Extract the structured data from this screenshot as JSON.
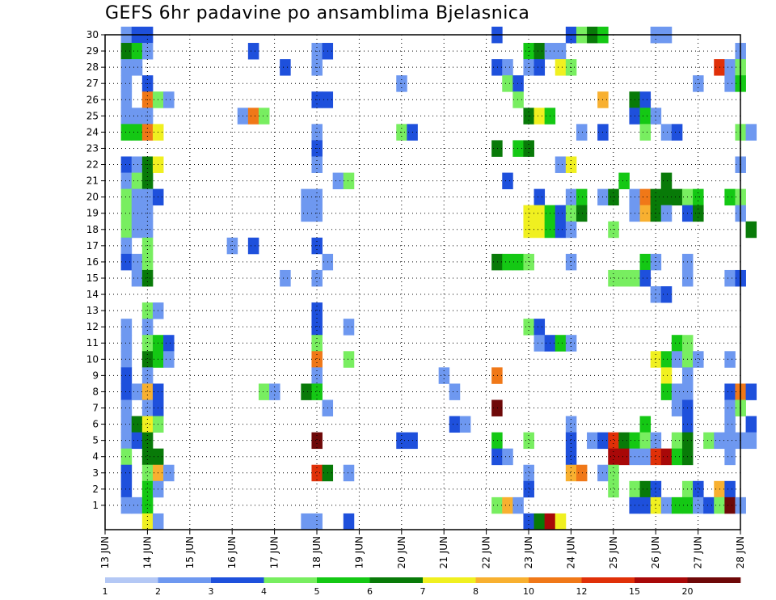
{
  "chart_data": {
    "type": "heatmap",
    "title": "GEFS 6hr padavine po ansamblima Bjelasnica",
    "xlabel": "",
    "ylabel": "",
    "x_ticks": [
      "13 JUN",
      "14 JUN",
      "15 JUN",
      "16 JUN",
      "17 JUN",
      "18 JUN",
      "19 JUN",
      "20 JUN",
      "21 JUN",
      "22 JUN",
      "23 JUN",
      "24 JUN",
      "25 JUN",
      "26 JUN",
      "27 JUN",
      "28 JUN"
    ],
    "y_ticks": [
      1,
      2,
      3,
      4,
      5,
      6,
      7,
      8,
      9,
      10,
      11,
      12,
      13,
      14,
      15,
      16,
      17,
      18,
      19,
      20,
      21,
      22,
      23,
      24,
      25,
      26,
      27,
      28,
      29,
      30
    ],
    "xlim_days": [
      13,
      28
    ],
    "ylim_members": [
      0,
      30
    ],
    "time_step_hours": 6,
    "grid": true,
    "colorbar": {
      "tick_labels": [
        "1",
        "2",
        "3",
        "4",
        "5",
        "6",
        "7",
        "8",
        "10",
        "12",
        "15",
        "20"
      ],
      "colors": [
        "#b4c8f5",
        "#6e98f0",
        "#1e50dc",
        "#78ee60",
        "#14c814",
        "#087a08",
        "#f0f020",
        "#f8b030",
        "#f07818",
        "#e03008",
        "#a80808",
        "#6e0808"
      ]
    },
    "cells": [
      [
        13.5,
        30,
        1
      ],
      [
        13.75,
        30,
        2
      ],
      [
        14,
        30,
        2
      ],
      [
        22.25,
        30,
        2
      ],
      [
        24,
        30,
        2
      ],
      [
        24.25,
        30,
        3
      ],
      [
        24.5,
        30,
        5
      ],
      [
        24.75,
        30,
        4
      ],
      [
        26,
        30,
        1
      ],
      [
        26.25,
        30,
        1
      ],
      [
        13.5,
        29,
        5
      ],
      [
        13.75,
        29,
        4
      ],
      [
        14,
        29,
        1
      ],
      [
        16.5,
        29,
        2
      ],
      [
        18,
        29,
        1
      ],
      [
        18.25,
        29,
        2
      ],
      [
        23,
        29,
        4
      ],
      [
        23.25,
        29,
        5
      ],
      [
        23.5,
        29,
        1
      ],
      [
        23.75,
        29,
        1
      ],
      [
        28,
        29,
        1
      ],
      [
        13.5,
        28,
        1
      ],
      [
        13.75,
        28,
        1
      ],
      [
        17.25,
        28,
        2
      ],
      [
        18,
        28,
        1
      ],
      [
        22.25,
        28,
        2
      ],
      [
        22.5,
        28,
        1
      ],
      [
        23,
        28,
        1
      ],
      [
        23.25,
        28,
        2
      ],
      [
        23.75,
        28,
        6
      ],
      [
        24,
        28,
        3
      ],
      [
        27.5,
        28,
        9
      ],
      [
        27.75,
        28,
        1
      ],
      [
        28,
        28,
        3
      ],
      [
        13.5,
        27,
        1
      ],
      [
        14,
        27,
        2
      ],
      [
        20,
        27,
        1
      ],
      [
        22.5,
        27,
        3
      ],
      [
        22.75,
        27,
        2
      ],
      [
        27,
        27,
        1
      ],
      [
        27.75,
        27,
        1
      ],
      [
        28,
        27,
        4
      ],
      [
        13.5,
        26,
        1
      ],
      [
        14,
        26,
        8
      ],
      [
        14.25,
        26,
        3
      ],
      [
        14.5,
        26,
        1
      ],
      [
        18,
        26,
        2
      ],
      [
        18.25,
        26,
        2
      ],
      [
        22.75,
        26,
        3
      ],
      [
        24.75,
        26,
        7
      ],
      [
        25.5,
        26,
        5
      ],
      [
        25.75,
        26,
        2
      ],
      [
        13.5,
        25,
        1
      ],
      [
        13.75,
        25,
        1
      ],
      [
        14,
        25,
        1
      ],
      [
        16.25,
        25,
        1
      ],
      [
        16.5,
        25,
        8
      ],
      [
        16.75,
        25,
        3
      ],
      [
        23,
        25,
        5
      ],
      [
        23.25,
        25,
        6
      ],
      [
        23.5,
        25,
        4
      ],
      [
        25.5,
        25,
        2
      ],
      [
        25.75,
        25,
        4
      ],
      [
        26,
        25,
        1
      ],
      [
        13.5,
        24,
        4
      ],
      [
        13.75,
        24,
        4
      ],
      [
        14,
        24,
        8
      ],
      [
        14.25,
        24,
        6
      ],
      [
        18,
        24,
        1
      ],
      [
        20,
        24,
        3
      ],
      [
        20.25,
        24,
        2
      ],
      [
        24.25,
        24,
        1
      ],
      [
        24.75,
        24,
        2
      ],
      [
        25.75,
        24,
        3
      ],
      [
        26.25,
        24,
        1
      ],
      [
        26.5,
        24,
        2
      ],
      [
        28,
        24,
        3
      ],
      [
        28.25,
        24,
        1
      ],
      [
        18,
        23,
        2
      ],
      [
        22.25,
        23,
        5
      ],
      [
        22.75,
        23,
        4
      ],
      [
        23,
        23,
        5
      ],
      [
        13.5,
        22,
        2
      ],
      [
        13.75,
        22,
        1
      ],
      [
        14,
        22,
        5
      ],
      [
        14.25,
        22,
        6
      ],
      [
        18,
        22,
        1
      ],
      [
        23.75,
        22,
        1
      ],
      [
        24,
        22,
        6
      ],
      [
        28,
        22,
        1
      ],
      [
        13.5,
        21,
        1
      ],
      [
        13.75,
        21,
        3
      ],
      [
        14,
        21,
        5
      ],
      [
        18.5,
        21,
        1
      ],
      [
        18.75,
        21,
        3
      ],
      [
        22.5,
        21,
        2
      ],
      [
        25.25,
        21,
        4
      ],
      [
        26.25,
        21,
        5
      ],
      [
        13.5,
        20,
        3
      ],
      [
        13.75,
        20,
        1
      ],
      [
        14,
        20,
        1
      ],
      [
        14.25,
        20,
        2
      ],
      [
        17.75,
        20,
        1
      ],
      [
        18,
        20,
        1
      ],
      [
        23.25,
        20,
        2
      ],
      [
        24,
        20,
        1
      ],
      [
        24.25,
        20,
        4
      ],
      [
        24.75,
        20,
        1
      ],
      [
        25,
        20,
        5
      ],
      [
        25.5,
        20,
        1
      ],
      [
        25.75,
        20,
        8
      ],
      [
        26,
        20,
        5
      ],
      [
        26.25,
        20,
        5
      ],
      [
        26.5,
        20,
        5
      ],
      [
        26.75,
        20,
        3
      ],
      [
        27,
        20,
        4
      ],
      [
        27.75,
        20,
        4
      ],
      [
        28,
        20,
        3
      ],
      [
        13.5,
        19,
        3
      ],
      [
        13.75,
        19,
        1
      ],
      [
        14,
        19,
        1
      ],
      [
        17.75,
        19,
        1
      ],
      [
        18,
        19,
        1
      ],
      [
        23,
        19,
        6
      ],
      [
        23.25,
        19,
        6
      ],
      [
        23.5,
        19,
        4
      ],
      [
        23.75,
        19,
        2
      ],
      [
        24,
        19,
        3
      ],
      [
        24.25,
        19,
        5
      ],
      [
        25.5,
        19,
        1
      ],
      [
        25.75,
        19,
        7
      ],
      [
        26,
        19,
        5
      ],
      [
        26.25,
        19,
        1
      ],
      [
        26.75,
        19,
        2
      ],
      [
        27,
        19,
        5
      ],
      [
        28,
        19,
        1
      ],
      [
        13.5,
        18,
        3
      ],
      [
        13.75,
        18,
        1
      ],
      [
        14,
        18,
        1
      ],
      [
        23,
        18,
        6
      ],
      [
        23.25,
        18,
        6
      ],
      [
        23.5,
        18,
        4
      ],
      [
        23.75,
        18,
        2
      ],
      [
        24,
        18,
        1
      ],
      [
        25,
        18,
        3
      ],
      [
        28.25,
        18,
        5
      ],
      [
        13.5,
        17,
        1
      ],
      [
        14,
        17,
        3
      ],
      [
        16,
        17,
        1
      ],
      [
        16.5,
        17,
        2
      ],
      [
        18,
        17,
        2
      ],
      [
        13.5,
        16,
        2
      ],
      [
        13.75,
        16,
        1
      ],
      [
        14,
        16,
        3
      ],
      [
        18.25,
        16,
        1
      ],
      [
        22.25,
        16,
        5
      ],
      [
        22.5,
        16,
        4
      ],
      [
        22.75,
        16,
        4
      ],
      [
        23,
        16,
        3
      ],
      [
        24,
        16,
        1
      ],
      [
        25.75,
        16,
        4
      ],
      [
        26,
        16,
        1
      ],
      [
        26.75,
        16,
        1
      ],
      [
        13.75,
        15,
        1
      ],
      [
        14,
        15,
        5
      ],
      [
        17.25,
        15,
        1
      ],
      [
        18,
        15,
        1
      ],
      [
        25,
        15,
        3
      ],
      [
        25.25,
        15,
        3
      ],
      [
        25.5,
        15,
        3
      ],
      [
        25.75,
        15,
        2
      ],
      [
        26.75,
        15,
        1
      ],
      [
        27.75,
        15,
        1
      ],
      [
        28,
        15,
        2
      ],
      [
        26,
        14,
        1
      ],
      [
        26.25,
        14,
        2
      ],
      [
        14,
        13,
        3
      ],
      [
        14.25,
        13,
        1
      ],
      [
        18,
        13,
        2
      ],
      [
        13.5,
        12,
        1
      ],
      [
        14,
        12,
        1
      ],
      [
        18,
        12,
        2
      ],
      [
        18.75,
        12,
        1
      ],
      [
        23,
        12,
        3
      ],
      [
        23.25,
        12,
        2
      ],
      [
        13.5,
        11,
        1
      ],
      [
        14,
        11,
        3
      ],
      [
        14.25,
        11,
        4
      ],
      [
        14.5,
        11,
        2
      ],
      [
        18,
        11,
        3
      ],
      [
        23.25,
        11,
        1
      ],
      [
        23.5,
        11,
        2
      ],
      [
        23.75,
        11,
        4
      ],
      [
        24,
        11,
        1
      ],
      [
        26.5,
        11,
        4
      ],
      [
        26.75,
        11,
        3
      ],
      [
        13.5,
        10,
        1
      ],
      [
        14,
        10,
        5
      ],
      [
        14.25,
        10,
        4
      ],
      [
        14.5,
        10,
        1
      ],
      [
        18,
        10,
        8
      ],
      [
        18.75,
        10,
        3
      ],
      [
        26,
        10,
        6
      ],
      [
        26.25,
        10,
        4
      ],
      [
        26.5,
        10,
        1
      ],
      [
        26.75,
        10,
        3
      ],
      [
        27,
        10,
        1
      ],
      [
        27.75,
        10,
        1
      ],
      [
        13.5,
        9,
        2
      ],
      [
        14,
        9,
        1
      ],
      [
        18,
        9,
        1
      ],
      [
        21,
        9,
        1
      ],
      [
        22.25,
        9,
        8
      ],
      [
        26.25,
        9,
        6
      ],
      [
        26.75,
        9,
        1
      ],
      [
        13.5,
        8,
        2
      ],
      [
        13.75,
        8,
        1
      ],
      [
        14,
        8,
        7
      ],
      [
        14.25,
        8,
        2
      ],
      [
        16.75,
        8,
        3
      ],
      [
        17,
        8,
        1
      ],
      [
        17.75,
        8,
        5
      ],
      [
        18,
        8,
        4
      ],
      [
        21.25,
        8,
        1
      ],
      [
        26.25,
        8,
        4
      ],
      [
        26.5,
        8,
        1
      ],
      [
        26.75,
        8,
        1
      ],
      [
        27.75,
        8,
        2
      ],
      [
        28,
        8,
        8
      ],
      [
        28.25,
        8,
        2
      ],
      [
        13.5,
        7,
        1
      ],
      [
        14,
        7,
        1
      ],
      [
        14.25,
        7,
        2
      ],
      [
        18.25,
        7,
        1
      ],
      [
        22.25,
        7,
        11
      ],
      [
        26.5,
        7,
        1
      ],
      [
        26.75,
        7,
        2
      ],
      [
        27.75,
        7,
        1
      ],
      [
        28,
        7,
        3
      ],
      [
        13.5,
        6,
        1
      ],
      [
        13.75,
        6,
        5
      ],
      [
        14,
        6,
        6
      ],
      [
        14.25,
        6,
        3
      ],
      [
        21.25,
        6,
        2
      ],
      [
        21.5,
        6,
        1
      ],
      [
        24,
        6,
        1
      ],
      [
        25.75,
        6,
        4
      ],
      [
        26.75,
        6,
        2
      ],
      [
        27.75,
        6,
        1
      ],
      [
        28.25,
        6,
        2
      ],
      [
        13.5,
        5,
        1
      ],
      [
        13.75,
        5,
        2
      ],
      [
        14,
        5,
        5
      ],
      [
        18,
        5,
        11
      ],
      [
        20,
        5,
        2
      ],
      [
        20.25,
        5,
        2
      ],
      [
        22.25,
        5,
        4
      ],
      [
        23,
        5,
        3
      ],
      [
        24,
        5,
        2
      ],
      [
        24.5,
        5,
        1
      ],
      [
        24.75,
        5,
        2
      ],
      [
        25,
        5,
        9
      ],
      [
        25.25,
        5,
        5
      ],
      [
        25.5,
        5,
        4
      ],
      [
        25.75,
        5,
        3
      ],
      [
        26,
        5,
        1
      ],
      [
        26.5,
        5,
        3
      ],
      [
        26.75,
        5,
        5
      ],
      [
        27.25,
        5,
        3
      ],
      [
        27.5,
        5,
        1
      ],
      [
        27.75,
        5,
        1
      ],
      [
        28,
        5,
        1
      ],
      [
        28.25,
        5,
        1
      ],
      [
        13.5,
        4,
        3
      ],
      [
        14,
        4,
        5
      ],
      [
        14.25,
        4,
        5
      ],
      [
        22.25,
        4,
        2
      ],
      [
        22.5,
        4,
        1
      ],
      [
        24,
        4,
        2
      ],
      [
        25,
        4,
        10
      ],
      [
        25.25,
        4,
        10
      ],
      [
        25.5,
        4,
        1
      ],
      [
        25.75,
        4,
        1
      ],
      [
        26,
        4,
        9
      ],
      [
        26.25,
        4,
        10
      ],
      [
        26.5,
        4,
        4
      ],
      [
        26.75,
        4,
        5
      ],
      [
        27.75,
        4,
        1
      ],
      [
        13.5,
        3,
        2
      ],
      [
        14,
        3,
        3
      ],
      [
        14.25,
        3,
        7
      ],
      [
        14.5,
        3,
        1
      ],
      [
        18,
        3,
        9
      ],
      [
        18.25,
        3,
        5
      ],
      [
        18.75,
        3,
        1
      ],
      [
        23,
        3,
        1
      ],
      [
        24,
        3,
        7
      ],
      [
        24.25,
        3,
        8
      ],
      [
        24.75,
        3,
        1
      ],
      [
        25,
        3,
        3
      ],
      [
        13.5,
        2,
        2
      ],
      [
        14,
        2,
        4
      ],
      [
        14.25,
        2,
        1
      ],
      [
        23,
        2,
        2
      ],
      [
        25,
        2,
        3
      ],
      [
        25.5,
        2,
        3
      ],
      [
        25.75,
        2,
        5
      ],
      [
        26,
        2,
        2
      ],
      [
        26.75,
        2,
        3
      ],
      [
        27,
        2,
        2
      ],
      [
        27.5,
        2,
        7
      ],
      [
        27.75,
        2,
        2
      ],
      [
        13.5,
        1,
        1
      ],
      [
        13.75,
        1,
        1
      ],
      [
        14,
        1,
        4
      ],
      [
        22.25,
        1,
        3
      ],
      [
        22.5,
        1,
        7
      ],
      [
        22.75,
        1,
        1
      ],
      [
        25.5,
        1,
        2
      ],
      [
        25.75,
        1,
        2
      ],
      [
        26,
        1,
        6
      ],
      [
        26.25,
        1,
        1
      ],
      [
        26.5,
        1,
        4
      ],
      [
        26.75,
        1,
        4
      ],
      [
        27,
        1,
        1
      ],
      [
        27.25,
        1,
        2
      ],
      [
        27.5,
        1,
        3
      ],
      [
        27.75,
        1,
        11
      ],
      [
        28,
        1,
        1
      ],
      [
        14,
        0,
        6
      ],
      [
        14.25,
        0,
        1
      ],
      [
        17.75,
        0,
        1
      ],
      [
        18,
        0,
        1
      ],
      [
        18.75,
        0,
        2
      ],
      [
        23,
        0,
        2
      ],
      [
        23.25,
        0,
        5
      ],
      [
        23.5,
        0,
        10
      ],
      [
        23.75,
        0,
        6
      ]
    ]
  }
}
